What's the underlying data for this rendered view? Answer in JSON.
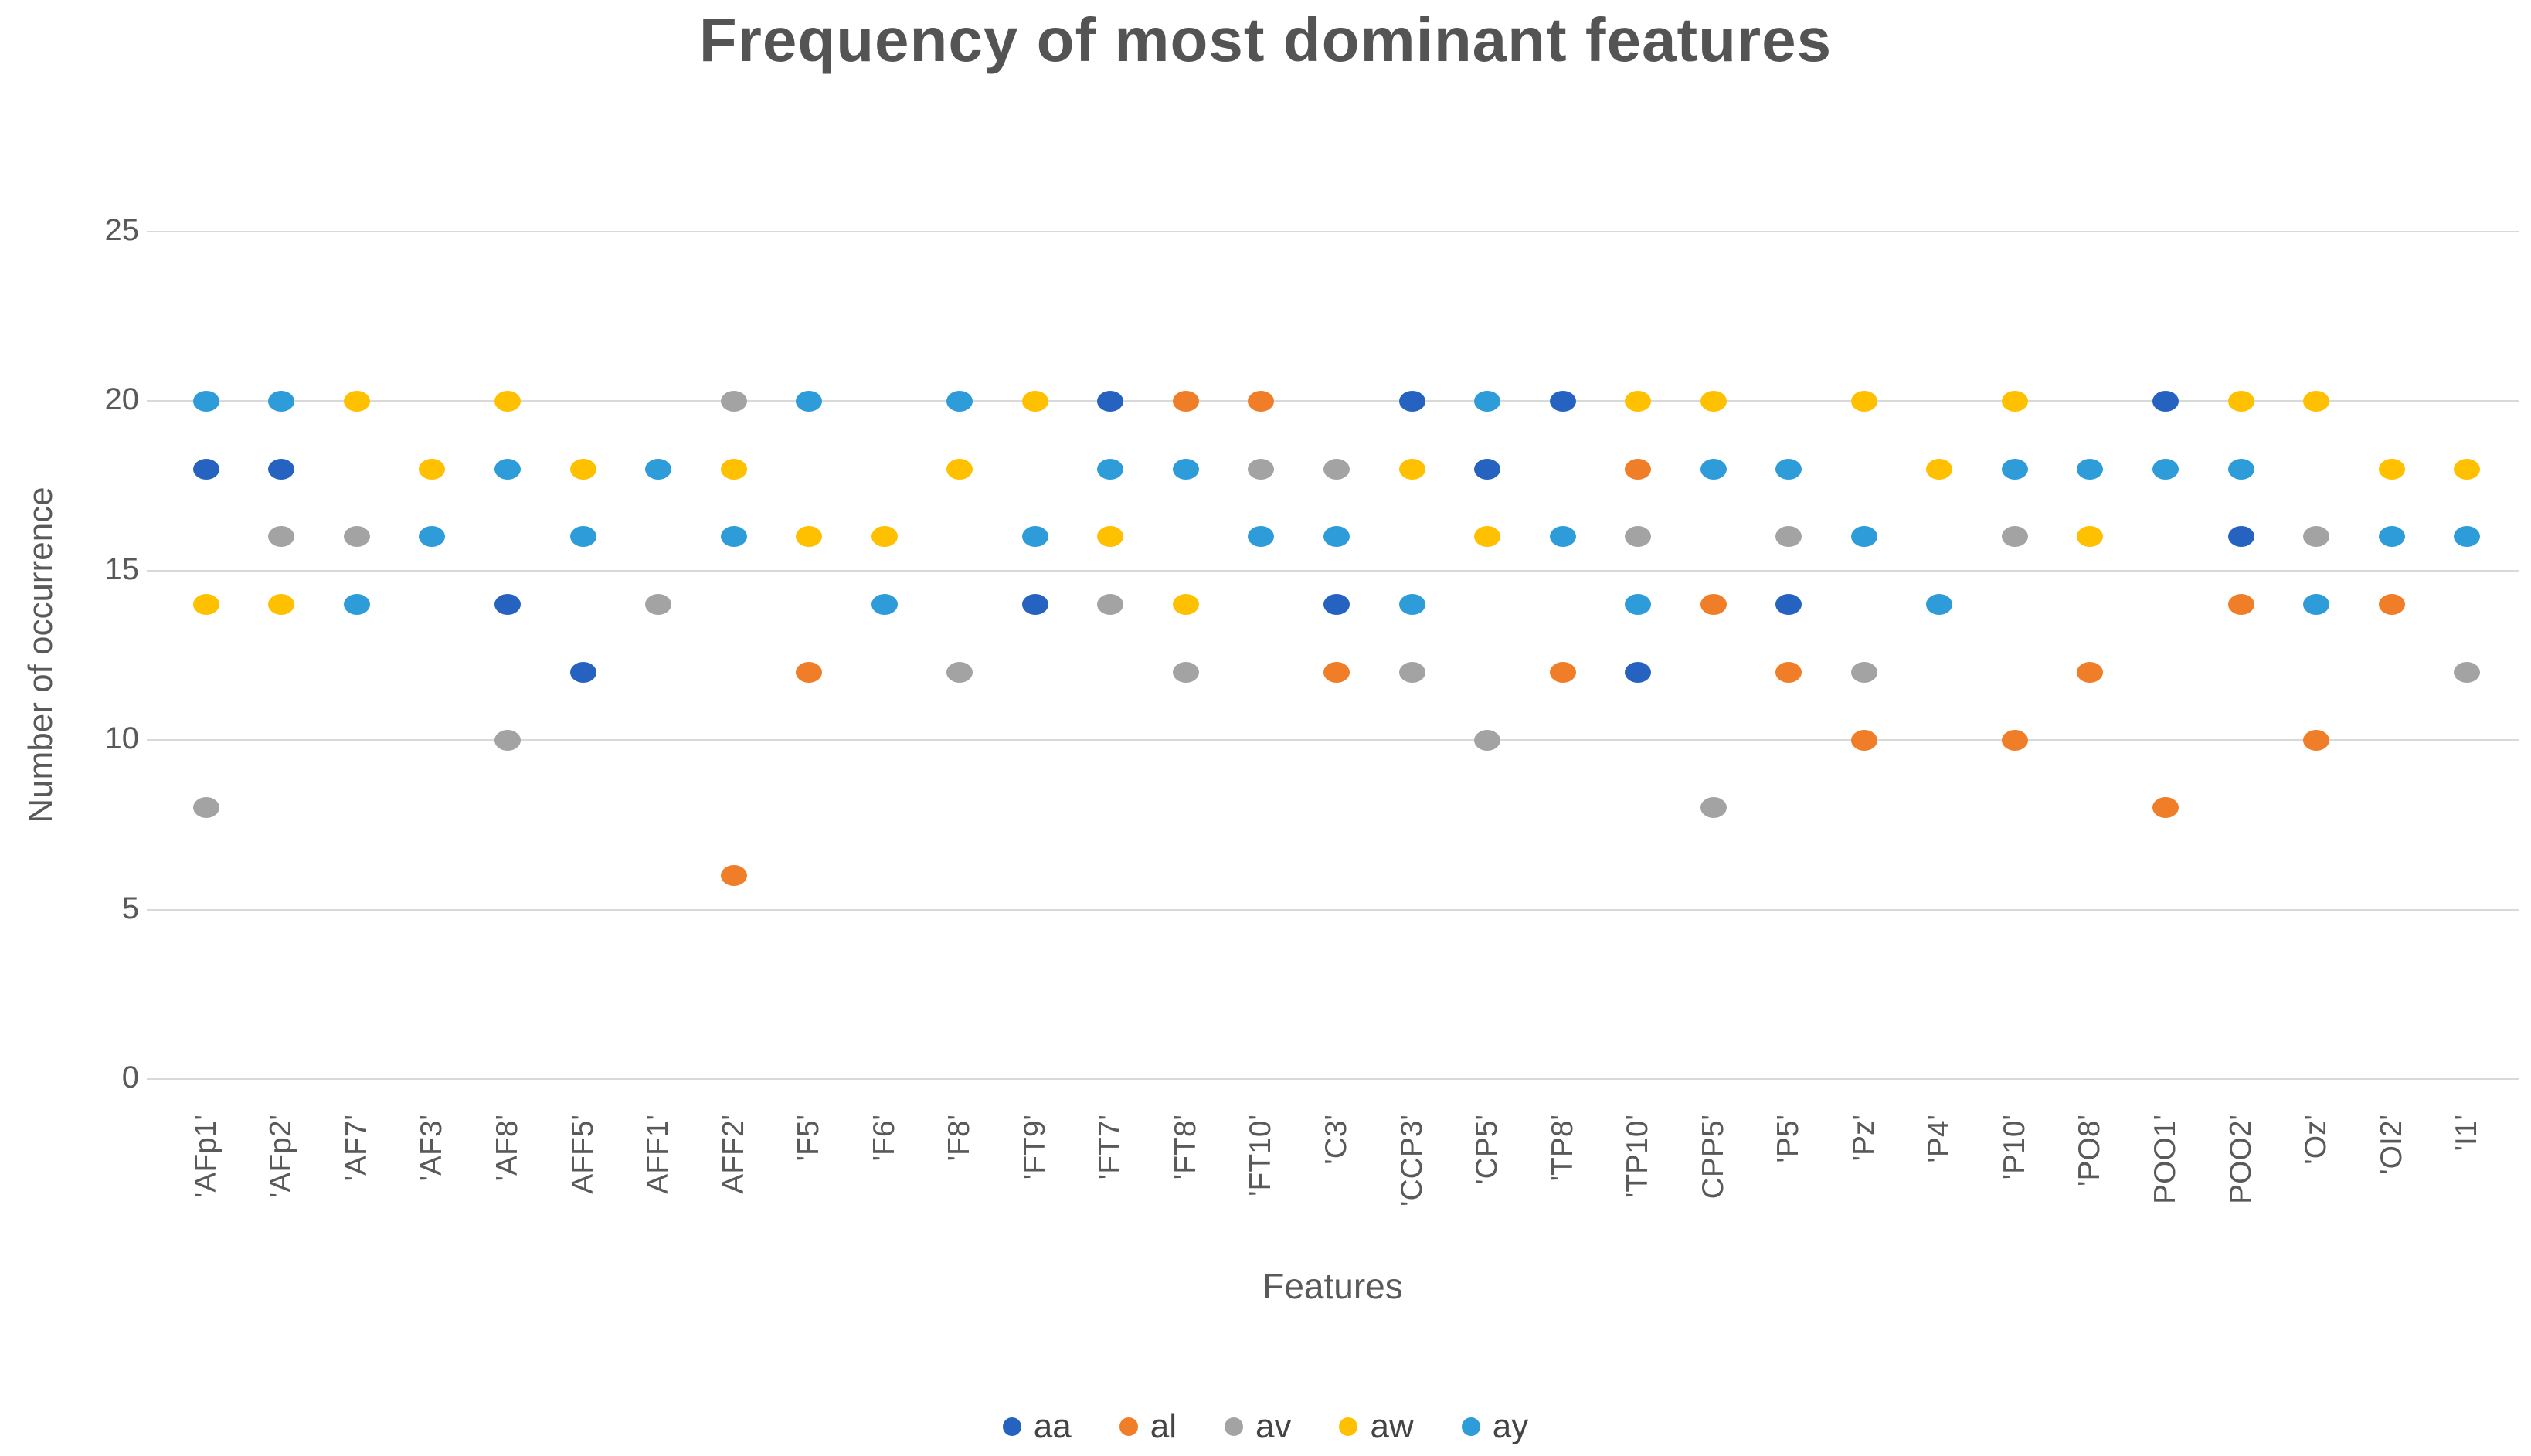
{
  "chart_data": {
    "type": "scatter",
    "title": "Frequency of most dominant features",
    "xlabel": "Features",
    "ylabel": "Number of occurrence",
    "y_ticks": [
      0,
      5,
      10,
      15,
      20,
      25
    ],
    "ylim": [
      0,
      25
    ],
    "grid": "horizontal",
    "legend_position": "bottom",
    "categories": [
      "'AFp1'",
      "'AFp2'",
      "'AF7'",
      "'AF3'",
      "'AF8'",
      "AFF5'",
      "AFF1'",
      "AFF2'",
      "'F5'",
      "'F6'",
      "'F8'",
      "'FT9'",
      "'FT7'",
      "'FT8'",
      "'FT10'",
      "'C3'",
      "'CCP3'",
      "'CP5'",
      "'TP8'",
      "'TP10'",
      "CPP5'",
      "'P5'",
      "'Pz'",
      "'P4'",
      "'P10'",
      "'PO8'",
      "POO1'",
      "POO2'",
      "'Oz'",
      "'OI2'",
      "'I1'"
    ],
    "series": [
      {
        "name": "aa",
        "color": "#2663C0",
        "values": [
          18,
          18,
          null,
          null,
          14,
          12,
          null,
          null,
          null,
          null,
          null,
          14,
          20,
          null,
          null,
          14,
          20,
          18,
          20,
          12,
          null,
          14,
          null,
          null,
          null,
          null,
          20,
          16,
          null,
          null,
          null
        ]
      },
      {
        "name": "al",
        "color": "#F07D28",
        "values": [
          null,
          null,
          null,
          null,
          null,
          null,
          null,
          6,
          12,
          null,
          null,
          null,
          null,
          20,
          20,
          12,
          null,
          null,
          12,
          18,
          14,
          12,
          10,
          null,
          10,
          12,
          8,
          14,
          10,
          14,
          null
        ]
      },
      {
        "name": "av",
        "color": "#A3A3A3",
        "values": [
          8,
          16,
          16,
          null,
          10,
          null,
          14,
          20,
          null,
          null,
          12,
          null,
          14,
          12,
          18,
          18,
          12,
          10,
          null,
          16,
          8,
          16,
          12,
          null,
          16,
          null,
          null,
          null,
          16,
          null,
          12
        ]
      },
      {
        "name": "aw",
        "color": "#FFC000",
        "values": [
          14,
          14,
          20,
          18,
          20,
          18,
          null,
          18,
          16,
          16,
          18,
          20,
          16,
          14,
          null,
          null,
          18,
          16,
          null,
          20,
          20,
          null,
          20,
          18,
          20,
          16,
          null,
          20,
          20,
          18,
          18
        ]
      },
      {
        "name": "ay",
        "color": "#2F9CDA",
        "values": [
          20,
          20,
          14,
          16,
          18,
          16,
          18,
          16,
          20,
          14,
          20,
          16,
          18,
          18,
          16,
          16,
          14,
          20,
          16,
          14,
          18,
          18,
          16,
          14,
          18,
          18,
          18,
          18,
          14,
          16,
          16
        ]
      }
    ]
  }
}
